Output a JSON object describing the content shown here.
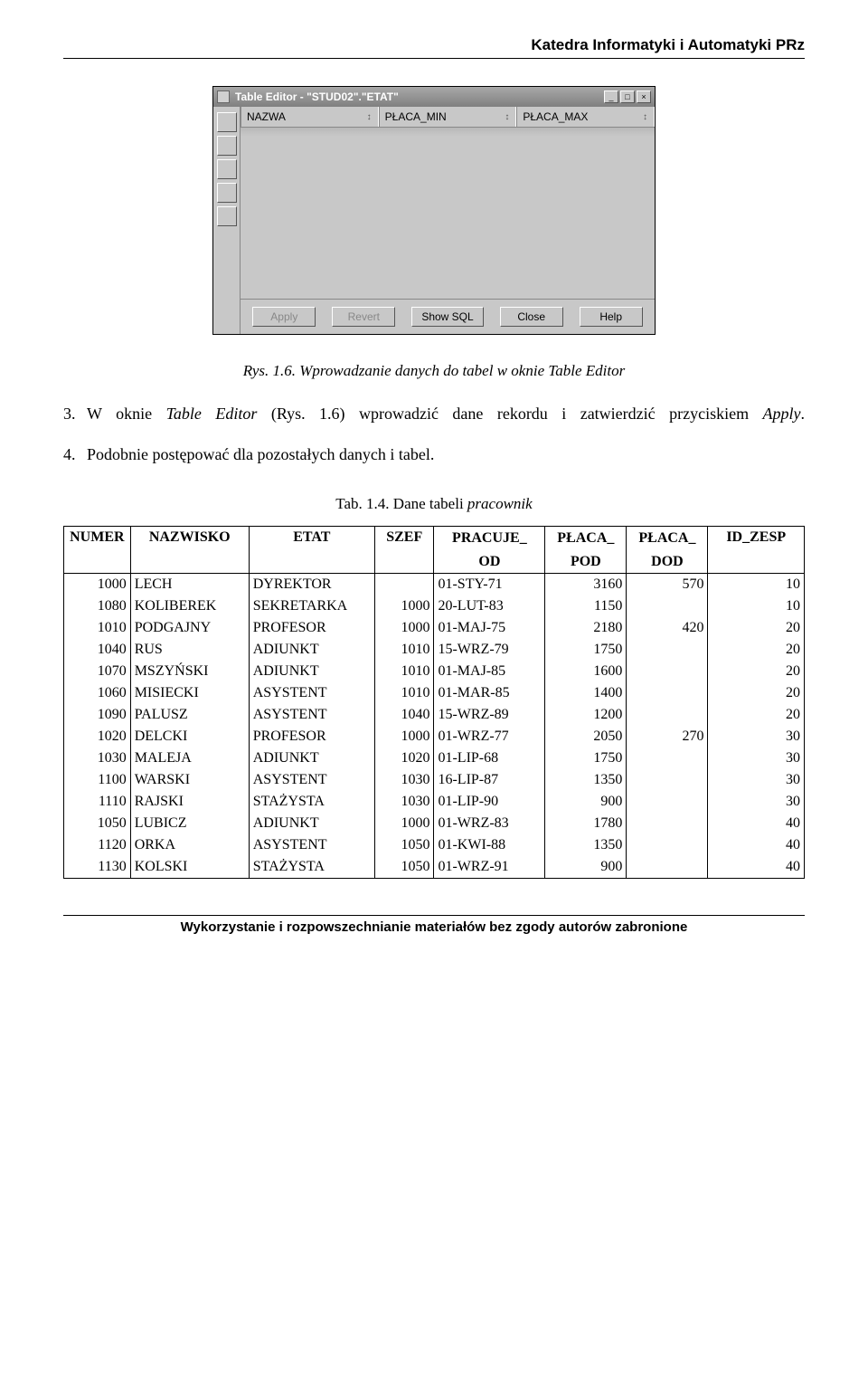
{
  "header": "Katedra Informatyki i Automatyki PRz",
  "window": {
    "title": "Table Editor - \"STUD02\".\"ETAT\"",
    "columns": [
      "NAZWA",
      "PŁACA_MIN",
      "PŁACA_MAX"
    ],
    "buttons": {
      "apply": "Apply",
      "revert": "Revert",
      "showsql": "Show SQL",
      "close": "Close",
      "help": "Help"
    }
  },
  "fig_caption": "Rys. 1.6. Wprowadzanie danych do tabel w oknie Table Editor",
  "step3_a": "3.",
  "step3_b": "W oknie ",
  "step3_c": "Table Editor",
  "step3_d": " (Rys. 1.6) wprowadzić dane rekordu i zatwierdzić przyciskiem ",
  "step3_e": "Apply",
  "step3_f": ".",
  "step4_a": "4.",
  "step4_b": "Podobnie postępować dla pozostałych danych i tabel.",
  "tab_caption_a": "Tab. 1.4. Dane tabeli ",
  "tab_caption_b": "pracownik",
  "table": {
    "cols": {
      "numer": "NUMER",
      "nazwisko": "NAZWISKO",
      "etat": "ETAT",
      "szef": "SZEF",
      "pracuje_od_1": "PRACUJE_",
      "pracuje_od_2": "OD",
      "placa_pod_1": "PŁACA_",
      "placa_pod_2": "POD",
      "placa_dod_1": "PŁACA_",
      "placa_dod_2": "DOD",
      "id_zesp": "ID_ZESP"
    },
    "rows": [
      {
        "numer": "1000",
        "nazwisko": "LECH",
        "etat": "DYREKTOR",
        "szef": "",
        "pracuje": "01-STY-71",
        "ppod": "3160",
        "pdod": "570",
        "zesp": "10"
      },
      {
        "numer": "1080",
        "nazwisko": "KOLIBEREK",
        "etat": "SEKRETARKA",
        "szef": "1000",
        "pracuje": "20-LUT-83",
        "ppod": "1150",
        "pdod": "",
        "zesp": "10"
      },
      {
        "numer": "1010",
        "nazwisko": "PODGAJNY",
        "etat": "PROFESOR",
        "szef": "1000",
        "pracuje": "01-MAJ-75",
        "ppod": "2180",
        "pdod": "420",
        "zesp": "20"
      },
      {
        "numer": "1040",
        "nazwisko": "RUS",
        "etat": "ADIUNKT",
        "szef": "1010",
        "pracuje": "15-WRZ-79",
        "ppod": "1750",
        "pdod": "",
        "zesp": "20"
      },
      {
        "numer": "1070",
        "nazwisko": "MSZYŃSKI",
        "etat": "ADIUNKT",
        "szef": "1010",
        "pracuje": "01-MAJ-85",
        "ppod": "1600",
        "pdod": "",
        "zesp": "20"
      },
      {
        "numer": "1060",
        "nazwisko": "MISIECKI",
        "etat": "ASYSTENT",
        "szef": "1010",
        "pracuje": "01-MAR-85",
        "ppod": "1400",
        "pdod": "",
        "zesp": "20"
      },
      {
        "numer": "1090",
        "nazwisko": "PALUSZ",
        "etat": "ASYSTENT",
        "szef": "1040",
        "pracuje": "15-WRZ-89",
        "ppod": "1200",
        "pdod": "",
        "zesp": "20"
      },
      {
        "numer": "1020",
        "nazwisko": "DELCKI",
        "etat": "PROFESOR",
        "szef": "1000",
        "pracuje": "01-WRZ-77",
        "ppod": "2050",
        "pdod": "270",
        "zesp": "30"
      },
      {
        "numer": "1030",
        "nazwisko": "MALEJA",
        "etat": "ADIUNKT",
        "szef": "1020",
        "pracuje": "01-LIP-68",
        "ppod": "1750",
        "pdod": "",
        "zesp": "30"
      },
      {
        "numer": "1100",
        "nazwisko": "WARSKI",
        "etat": "ASYSTENT",
        "szef": "1030",
        "pracuje": "16-LIP-87",
        "ppod": "1350",
        "pdod": "",
        "zesp": "30"
      },
      {
        "numer": "1110",
        "nazwisko": "RAJSKI",
        "etat": "STAŻYSTA",
        "szef": "1030",
        "pracuje": "01-LIP-90",
        "ppod": "900",
        "pdod": "",
        "zesp": "30"
      },
      {
        "numer": "1050",
        "nazwisko": "LUBICZ",
        "etat": "ADIUNKT",
        "szef": "1000",
        "pracuje": "01-WRZ-83",
        "ppod": "1780",
        "pdod": "",
        "zesp": "40"
      },
      {
        "numer": "1120",
        "nazwisko": "ORKA",
        "etat": "ASYSTENT",
        "szef": "1050",
        "pracuje": "01-KWI-88",
        "ppod": "1350",
        "pdod": "",
        "zesp": "40"
      },
      {
        "numer": "1130",
        "nazwisko": "KOLSKI",
        "etat": "STAŻYSTA",
        "szef": "1050",
        "pracuje": "01-WRZ-91",
        "ppod": "900",
        "pdod": "",
        "zesp": "40"
      }
    ]
  },
  "footer": "Wykorzystanie i rozpowszechnianie materiałów bez zgody autorów zabronione"
}
